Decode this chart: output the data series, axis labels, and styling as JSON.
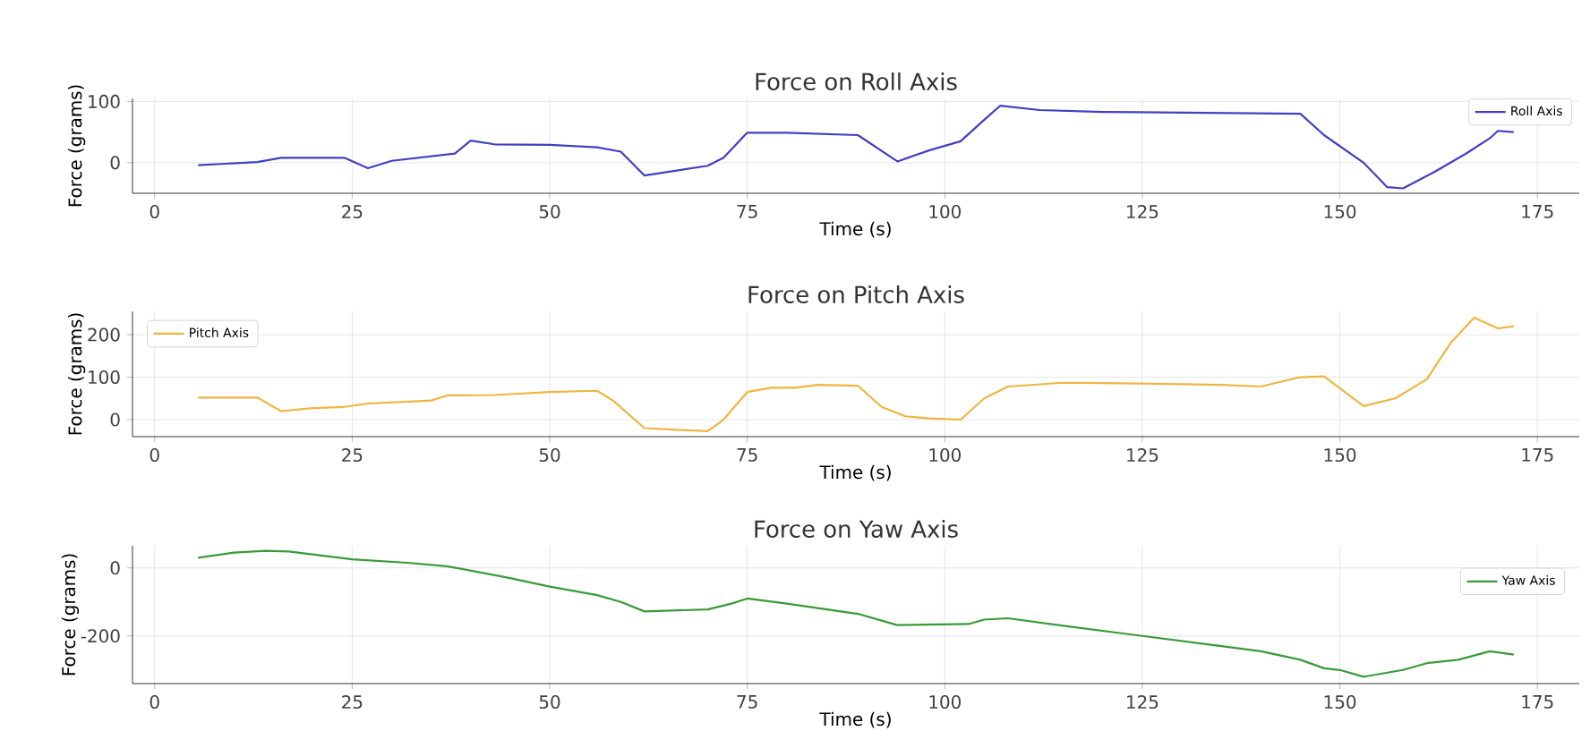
{
  "chart_data": [
    {
      "type": "line",
      "title": "Force on Roll Axis",
      "xlabel": "Time (s)",
      "ylabel": "Force (grams)",
      "xlim": [
        -2.8,
        180.3
      ],
      "ylim": [
        -50,
        105
      ],
      "xticks": [
        0,
        25,
        50,
        75,
        100,
        125,
        150,
        175
      ],
      "yticks": [
        0,
        100
      ],
      "grid": true,
      "legend": "top right",
      "series": [
        {
          "name": "Roll Axis",
          "color": "#4040c0",
          "x": [
            5.5,
            13,
            16,
            24,
            27,
            30,
            38,
            40,
            43,
            50,
            56,
            59,
            62,
            70,
            72,
            75,
            80,
            89,
            94,
            98,
            102,
            105,
            107,
            112,
            120,
            145,
            148,
            153,
            156,
            158,
            162,
            166,
            169,
            170,
            172
          ],
          "values": [
            -4,
            1,
            8,
            8,
            -9,
            3,
            15,
            36,
            30,
            29,
            25,
            18,
            -21,
            -5,
            8,
            49,
            49,
            45,
            2,
            20,
            35,
            70,
            93,
            86,
            83,
            80,
            45,
            0,
            -40,
            -42,
            -15,
            15,
            40,
            52,
            50
          ]
        }
      ]
    },
    {
      "type": "line",
      "title": "Force on Pitch Axis",
      "xlabel": "Time (s)",
      "ylabel": "Force (grams)",
      "xlim": [
        -2.8,
        180.3
      ],
      "ylim": [
        -40,
        255
      ],
      "xticks": [
        0,
        25,
        50,
        75,
        100,
        125,
        150,
        175
      ],
      "yticks": [
        0,
        100,
        200
      ],
      "grid": true,
      "legend": "top left",
      "series": [
        {
          "name": "Pitch Axis",
          "color": "#f0b440",
          "x": [
            5.5,
            13,
            16,
            20,
            24,
            27,
            35,
            37,
            43,
            50,
            56,
            58,
            62,
            66,
            70,
            72,
            75,
            78,
            81,
            84,
            89,
            92,
            95,
            98,
            102,
            105,
            108,
            115,
            125,
            135,
            140,
            145,
            148,
            153,
            157,
            161,
            164,
            167,
            170,
            172
          ],
          "values": [
            52,
            52,
            20,
            27,
            30,
            38,
            45,
            57,
            58,
            65,
            68,
            45,
            -20,
            -24,
            -27,
            0,
            65,
            75,
            75,
            82,
            80,
            30,
            8,
            3,
            0,
            50,
            78,
            87,
            85,
            82,
            78,
            100,
            102,
            32,
            50,
            95,
            180,
            240,
            215,
            220
          ]
        }
      ]
    },
    {
      "type": "line",
      "title": "Force on Yaw Axis",
      "xlabel": "Time (s)",
      "ylabel": "Force (grams)",
      "xlim": [
        -2.8,
        180.3
      ],
      "ylim": [
        -340,
        65
      ],
      "xticks": [
        0,
        25,
        50,
        75,
        100,
        125,
        150,
        175
      ],
      "yticks": [
        -200,
        0
      ],
      "grid": true,
      "legend": "right",
      "series": [
        {
          "name": "Yaw Axis",
          "color": "#3a9a3a",
          "x": [
            5.5,
            10,
            14,
            17,
            25,
            32,
            37,
            45,
            50,
            56,
            59,
            62,
            70,
            73,
            75,
            80,
            89,
            94,
            103,
            105,
            108,
            115,
            125,
            135,
            140,
            145,
            148,
            150,
            153,
            158,
            161,
            165,
            169,
            172
          ],
          "values": [
            30,
            45,
            50,
            48,
            25,
            15,
            5,
            -30,
            -55,
            -80,
            -100,
            -128,
            -122,
            -105,
            -90,
            -105,
            -135,
            -168,
            -165,
            -152,
            -148,
            -170,
            -200,
            -230,
            -245,
            -270,
            -295,
            -300,
            -320,
            -300,
            -280,
            -270,
            -245,
            -255
          ]
        }
      ]
    }
  ]
}
